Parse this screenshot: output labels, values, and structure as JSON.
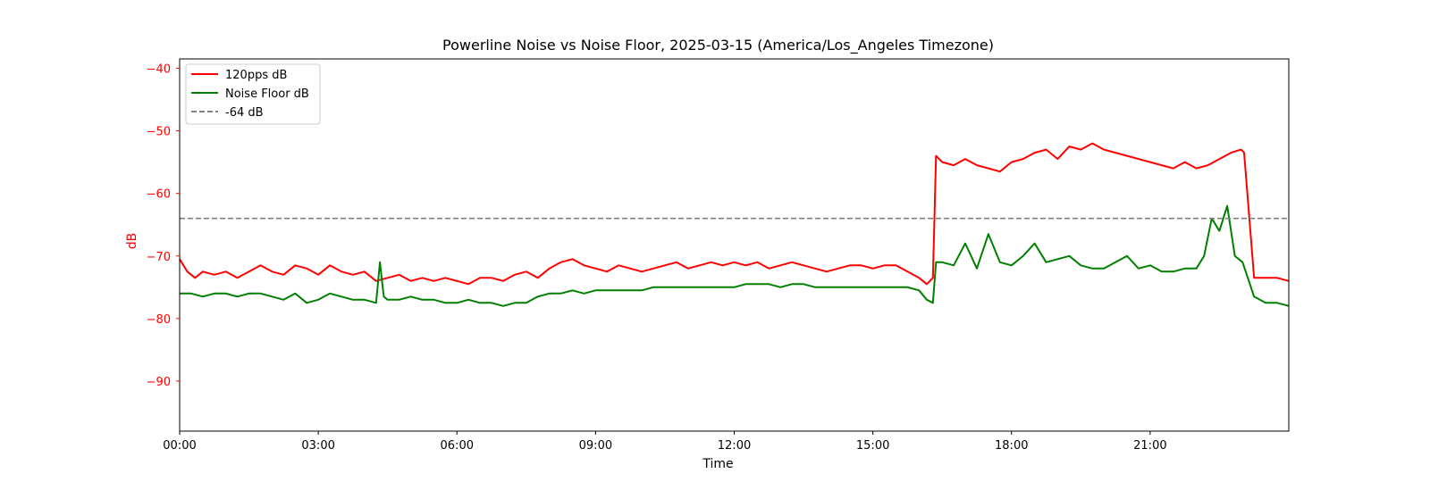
{
  "chart_data": {
    "type": "line",
    "title": "Powerline Noise vs Noise Floor, 2025-03-15 (America/Los_Angeles Timezone)",
    "xlabel": "Time",
    "ylabel": "dB",
    "xlim": [
      "00:00",
      "24:00"
    ],
    "ylim": [
      -98,
      -38.5
    ],
    "x_ticks": [
      "00:00",
      "03:00",
      "06:00",
      "09:00",
      "12:00",
      "15:00",
      "18:00",
      "21:00"
    ],
    "y_ticks": [
      -40,
      -50,
      -60,
      -70,
      -80,
      -90
    ],
    "grid": false,
    "legend_position": "top-left",
    "axis_color": "#ff0000",
    "reference_line": {
      "name": "-64 dB",
      "value": -64,
      "color": "#808080",
      "style": "dashed"
    },
    "series": [
      {
        "name": "120pps dB",
        "color": "#ff0000",
        "x": [
          "00:00",
          "00:10",
          "00:20",
          "00:30",
          "00:45",
          "01:00",
          "01:15",
          "01:30",
          "01:45",
          "02:00",
          "02:15",
          "02:30",
          "02:45",
          "03:00",
          "03:15",
          "03:30",
          "03:45",
          "04:00",
          "04:15",
          "04:30",
          "04:45",
          "05:00",
          "05:15",
          "05:30",
          "05:45",
          "06:00",
          "06:15",
          "06:30",
          "06:45",
          "07:00",
          "07:15",
          "07:30",
          "07:45",
          "08:00",
          "08:15",
          "08:30",
          "08:45",
          "09:00",
          "09:15",
          "09:30",
          "09:45",
          "10:00",
          "10:15",
          "10:30",
          "10:45",
          "11:00",
          "11:15",
          "11:30",
          "11:45",
          "12:00",
          "12:15",
          "12:30",
          "12:45",
          "13:00",
          "13:15",
          "13:30",
          "13:45",
          "14:00",
          "14:15",
          "14:30",
          "14:45",
          "15:00",
          "15:15",
          "15:30",
          "15:45",
          "16:00",
          "16:10",
          "16:18",
          "16:22",
          "16:30",
          "16:45",
          "17:00",
          "17:15",
          "17:30",
          "17:45",
          "18:00",
          "18:15",
          "18:30",
          "18:45",
          "19:00",
          "19:15",
          "19:30",
          "19:45",
          "20:00",
          "20:15",
          "20:30",
          "20:45",
          "21:00",
          "21:15",
          "21:30",
          "21:45",
          "22:00",
          "22:15",
          "22:30",
          "22:45",
          "22:58",
          "23:02",
          "23:15",
          "23:30",
          "23:45",
          "24:00"
        ],
        "values": [
          -70.5,
          -72.5,
          -73.5,
          -72.5,
          -73,
          -72.5,
          -73.5,
          -72.5,
          -71.5,
          -72.5,
          -73,
          -71.5,
          -72,
          -73,
          -71.5,
          -72.5,
          -73,
          -72.5,
          -74,
          -73.5,
          -73,
          -74,
          -73.5,
          -74,
          -73.5,
          -74,
          -74.5,
          -73.5,
          -73.5,
          -74,
          -73,
          -72.5,
          -73.5,
          -72,
          -71,
          -70.5,
          -71.5,
          -72,
          -72.5,
          -71.5,
          -72,
          -72.5,
          -72,
          -71.5,
          -71,
          -72,
          -71.5,
          -71,
          -71.5,
          -71,
          -71.5,
          -71,
          -72,
          -71.5,
          -71,
          -71.5,
          -72,
          -72.5,
          -72,
          -71.5,
          -71.5,
          -72,
          -71.5,
          -71.5,
          -72.5,
          -73.5,
          -74.5,
          -73.5,
          -54,
          -55,
          -55.5,
          -54.5,
          -55.5,
          -56,
          -56.5,
          -55,
          -54.5,
          -53.5,
          -53,
          -54.5,
          -52.5,
          -53,
          -52,
          -53,
          -53.5,
          -54,
          -54.5,
          -55,
          -55.5,
          -56,
          -55,
          -56,
          -55.5,
          -54.5,
          -53.5,
          -53,
          -53.5,
          -73.5,
          -73.5,
          -73.5,
          -74
        ]
      },
      {
        "name": "Noise Floor dB",
        "color": "#008000",
        "x": [
          "00:00",
          "00:15",
          "00:30",
          "00:45",
          "01:00",
          "01:15",
          "01:30",
          "01:45",
          "02:00",
          "02:15",
          "02:30",
          "02:45",
          "03:00",
          "03:15",
          "03:30",
          "03:45",
          "04:00",
          "04:15",
          "04:20",
          "04:25",
          "04:30",
          "04:45",
          "05:00",
          "05:15",
          "05:30",
          "05:45",
          "06:00",
          "06:15",
          "06:30",
          "06:45",
          "07:00",
          "07:15",
          "07:30",
          "07:45",
          "08:00",
          "08:15",
          "08:30",
          "08:45",
          "09:00",
          "09:15",
          "09:30",
          "09:45",
          "10:00",
          "10:15",
          "10:30",
          "10:45",
          "11:00",
          "11:15",
          "11:30",
          "11:45",
          "12:00",
          "12:15",
          "12:30",
          "12:45",
          "13:00",
          "13:15",
          "13:30",
          "13:45",
          "14:00",
          "14:15",
          "14:30",
          "14:45",
          "15:00",
          "15:15",
          "15:30",
          "15:45",
          "16:00",
          "16:10",
          "16:18",
          "16:22",
          "16:30",
          "16:45",
          "17:00",
          "17:15",
          "17:30",
          "17:45",
          "18:00",
          "18:15",
          "18:30",
          "18:45",
          "19:00",
          "19:15",
          "19:30",
          "19:45",
          "20:00",
          "20:15",
          "20:30",
          "20:45",
          "21:00",
          "21:15",
          "21:30",
          "21:45",
          "22:00",
          "22:10",
          "22:20",
          "22:30",
          "22:40",
          "22:50",
          "23:00",
          "23:15",
          "23:30",
          "23:45",
          "24:00"
        ],
        "values": [
          -76,
          -76,
          -76.5,
          -76,
          -76,
          -76.5,
          -76,
          -76,
          -76.5,
          -77,
          -76,
          -77.5,
          -77,
          -76,
          -76.5,
          -77,
          -77,
          -77.5,
          -71,
          -76.5,
          -77,
          -77,
          -76.5,
          -77,
          -77,
          -77.5,
          -77.5,
          -77,
          -77.5,
          -77.5,
          -78,
          -77.5,
          -77.5,
          -76.5,
          -76,
          -76,
          -75.5,
          -76,
          -75.5,
          -75.5,
          -75.5,
          -75.5,
          -75.5,
          -75,
          -75,
          -75,
          -75,
          -75,
          -75,
          -75,
          -75,
          -74.5,
          -74.5,
          -74.5,
          -75,
          -74.5,
          -74.5,
          -75,
          -75,
          -75,
          -75,
          -75,
          -75,
          -75,
          -75,
          -75,
          -75.5,
          -77,
          -77.5,
          -71,
          -71,
          -71.5,
          -68,
          -72,
          -66.5,
          -71,
          -71.5,
          -70,
          -68,
          -71,
          -70.5,
          -70,
          -71.5,
          -72,
          -72,
          -71,
          -70,
          -72,
          -71.5,
          -72.5,
          -72.5,
          -72,
          -72,
          -70,
          -64,
          -66,
          -62,
          -70,
          -71,
          -76.5,
          -77.5,
          -77.5,
          -78
        ]
      }
    ]
  }
}
